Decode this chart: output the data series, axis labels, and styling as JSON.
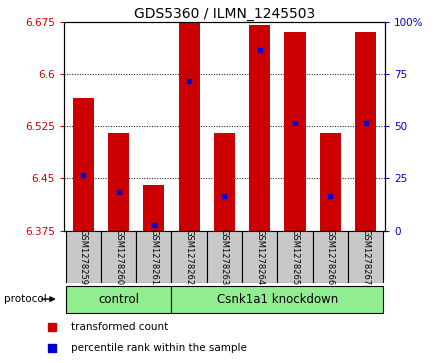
{
  "title": "GDS5360 / ILMN_1245503",
  "samples": [
    "GSM1278259",
    "GSM1278260",
    "GSM1278261",
    "GSM1278262",
    "GSM1278263",
    "GSM1278264",
    "GSM1278265",
    "GSM1278266",
    "GSM1278267"
  ],
  "bar_tops": [
    6.565,
    6.515,
    6.44,
    6.675,
    6.515,
    6.67,
    6.66,
    6.515,
    6.66
  ],
  "bar_base": 6.375,
  "blue_dot_values": [
    6.455,
    6.43,
    6.383,
    6.59,
    6.425,
    6.635,
    6.53,
    6.425,
    6.53
  ],
  "ylim": [
    6.375,
    6.675
  ],
  "yticks": [
    6.375,
    6.45,
    6.525,
    6.6,
    6.675
  ],
  "right_yticks": [
    0,
    25,
    50,
    75,
    100
  ],
  "right_ylim": [
    0,
    100
  ],
  "bar_color": "#cc0000",
  "dot_color": "#0000cc",
  "left_tick_color": "#cc0000",
  "right_tick_color": "#0000cc",
  "control_label": "control",
  "knockdown_label": "Csnk1a1 knockdown",
  "protocol_label": "protocol",
  "control_indices": [
    0,
    1,
    2
  ],
  "knockdown_indices": [
    3,
    4,
    5,
    6,
    7,
    8
  ],
  "legend_bar_label": "transformed count",
  "legend_dot_label": "percentile rank within the sample",
  "group_box_color": "#c8c8c8",
  "green_bg": "#90ee90",
  "bar_width": 0.6,
  "fig_width": 4.4,
  "fig_height": 3.63,
  "dpi": 100
}
